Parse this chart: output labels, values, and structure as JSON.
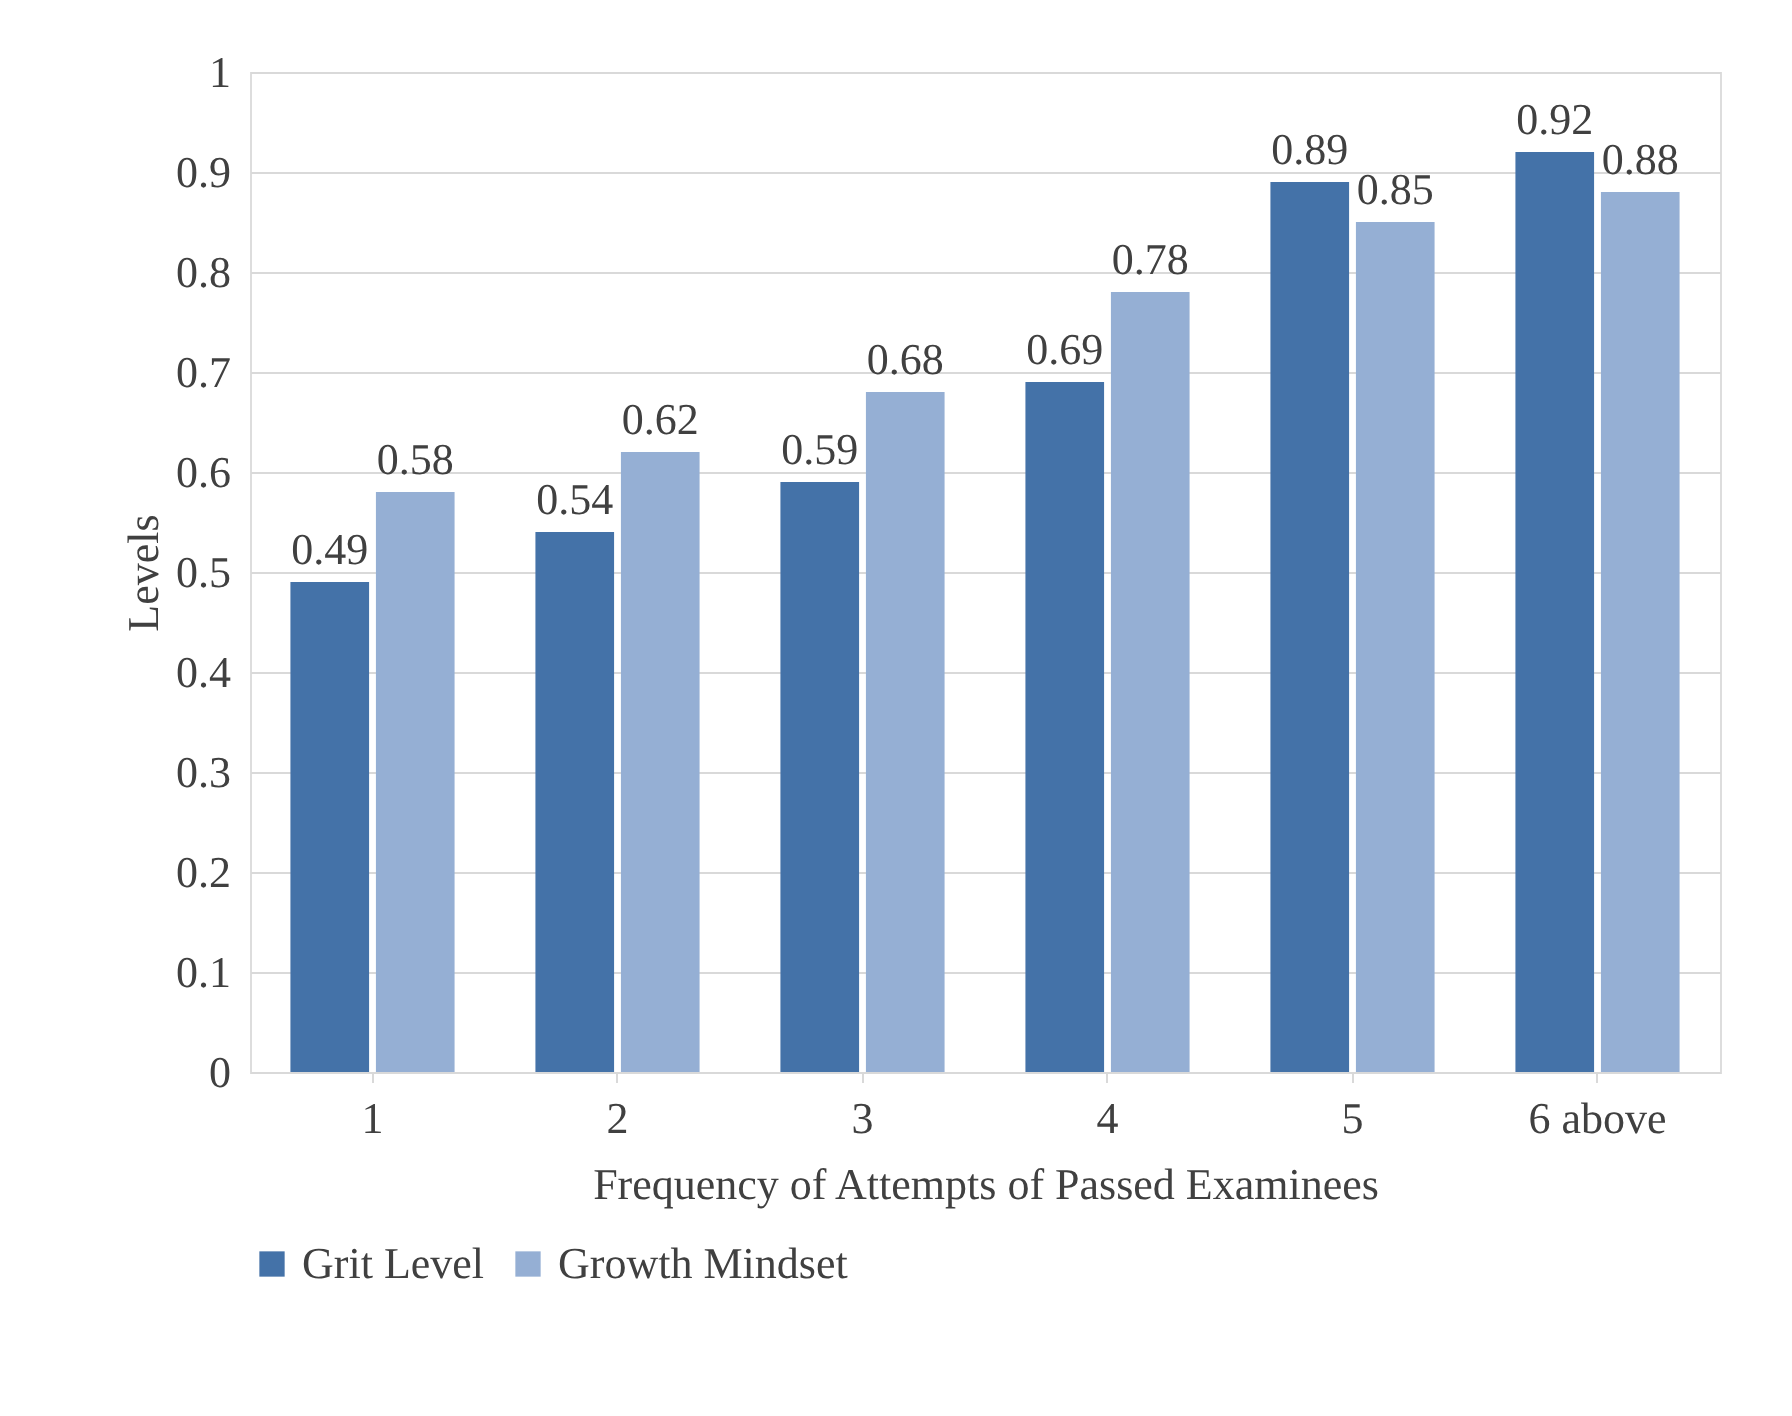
{
  "chart_data": {
    "type": "bar",
    "xlabel": "Frequency of Attempts of Passed Examinees",
    "ylabel": "Levels",
    "categories": [
      "1",
      "2",
      "3",
      "4",
      "5",
      "6 above"
    ],
    "series": [
      {
        "name": "Grit Level",
        "color": "#4472a8",
        "values": [
          0.49,
          0.54,
          0.59,
          0.69,
          0.89,
          0.92
        ]
      },
      {
        "name": "Growth Mindset",
        "color": "#95afd4",
        "values": [
          0.58,
          0.62,
          0.68,
          0.78,
          0.85,
          0.88
        ]
      }
    ],
    "ylim": [
      0,
      1
    ],
    "yticks": [
      0,
      0.1,
      0.2,
      0.3,
      0.4,
      0.5,
      0.6,
      0.7,
      0.8,
      0.9,
      1
    ],
    "grid": "y",
    "legend": "bottom",
    "data_labels": true
  }
}
